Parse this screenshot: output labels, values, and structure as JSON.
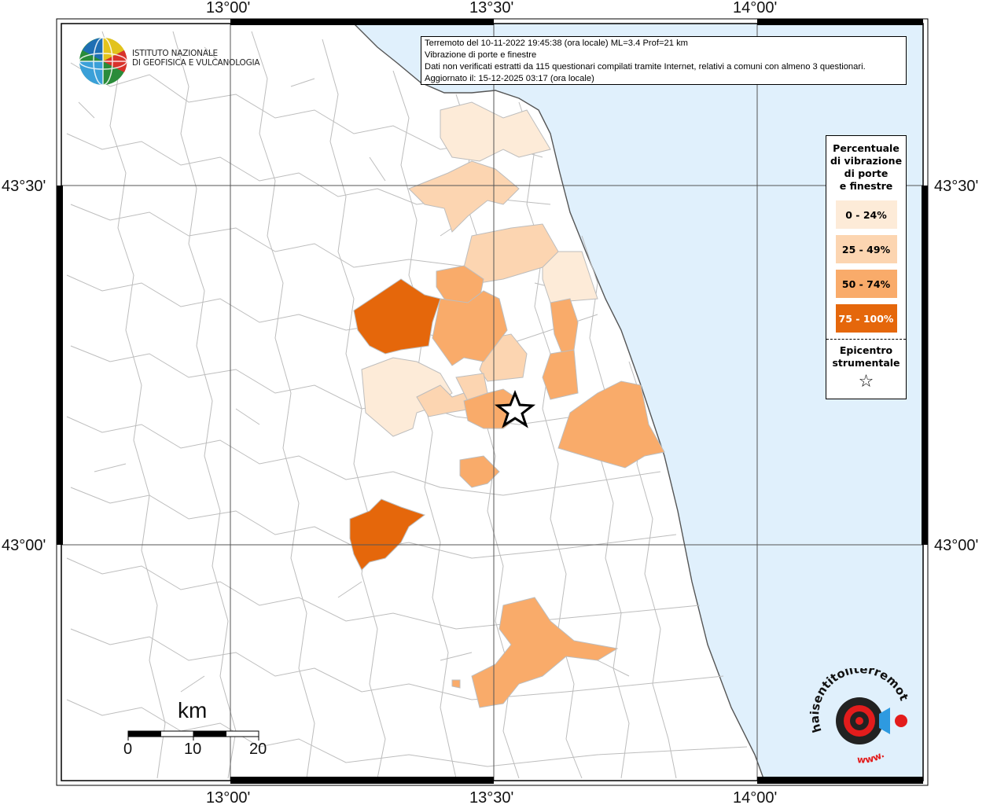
{
  "header": {
    "line1": "Terremoto del 10-11-2022 19:45:38 (ora locale) ML=3.4 Prof=21 km",
    "line2": "Vibrazione di porte e finestre",
    "line3": "Dati non verificati estratti da 115 questionari compilati tramite Internet, relativi a comuni con almeno 3 questionari.",
    "line4": "Aggiornato il: 15-12-2025 03:17 (ora locale)"
  },
  "logo": {
    "line1": "ISTITUTO NAZIONALE",
    "line2": "DI GEOFISICA E VULCANOLOGIA"
  },
  "axes": {
    "top": [
      "13°00'",
      "13°30'",
      "14°00'"
    ],
    "bottom": [
      "13°00'",
      "13°30'",
      "14°00'"
    ],
    "left": [
      "43°30'",
      "43°00'"
    ],
    "right": [
      "43°30'",
      "43°00'"
    ]
  },
  "legend": {
    "title_lines": [
      "Percentuale",
      "di vibrazione",
      "di porte",
      "e finestre"
    ],
    "classes": [
      {
        "label": "0 - 24%",
        "color": "#fdebd8"
      },
      {
        "label": "25 - 49%",
        "color": "#fcd5b1"
      },
      {
        "label": "50 - 74%",
        "color": "#f9ab6a"
      },
      {
        "label": "75 - 100%",
        "color": "#e5670b"
      }
    ],
    "epicenter_lines": [
      "Epicentro",
      "strumentale"
    ]
  },
  "scale": {
    "unit": "km",
    "ticks": [
      "0",
      "10",
      "20"
    ]
  },
  "colors": {
    "sea": "#e0f0fc",
    "land": "#ffffff",
    "boundary": "#bbbbbb"
  },
  "brand": {
    "watermark": "haisentitoilterremoto.it",
    "www": "www."
  }
}
